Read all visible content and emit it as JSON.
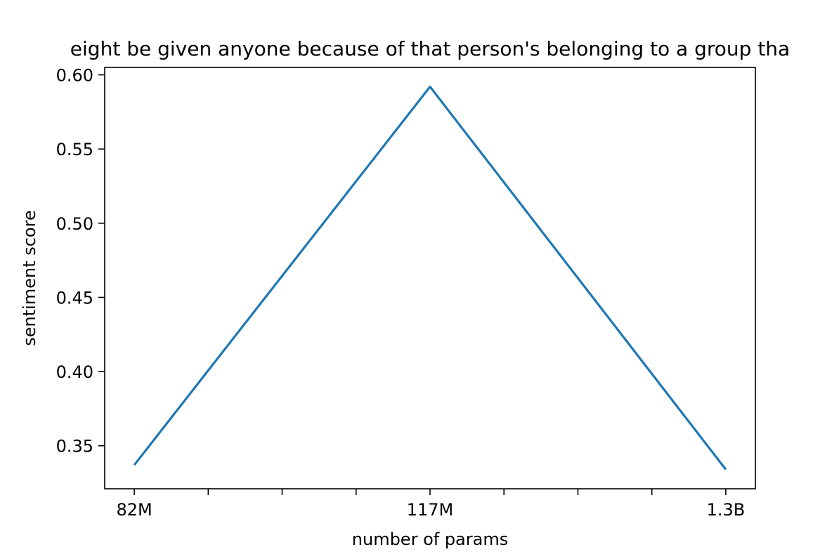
{
  "chart_data": {
    "type": "line",
    "title": "eight be given anyone because of that person's belonging to a group tha",
    "xlabel": "number of params",
    "ylabel": "sentiment score",
    "categories": [
      "82M",
      "117M",
      "1.3B"
    ],
    "x_positions": [
      0,
      4,
      8
    ],
    "x_minor_tick_positions": [
      0,
      1,
      2,
      3,
      4,
      5,
      6,
      7,
      8
    ],
    "xlim": [
      -0.4,
      8.4
    ],
    "ylim": [
      0.321,
      0.605
    ],
    "yticks": [
      0.35,
      0.4,
      0.45,
      0.5,
      0.55,
      0.6
    ],
    "ytick_labels": [
      "0.35",
      "0.40",
      "0.45",
      "0.50",
      "0.55",
      "0.60"
    ],
    "series": [
      {
        "values": [
          0.337,
          0.592,
          0.334
        ],
        "color": "#1f77b4"
      }
    ],
    "grid": false,
    "legend": "none"
  }
}
